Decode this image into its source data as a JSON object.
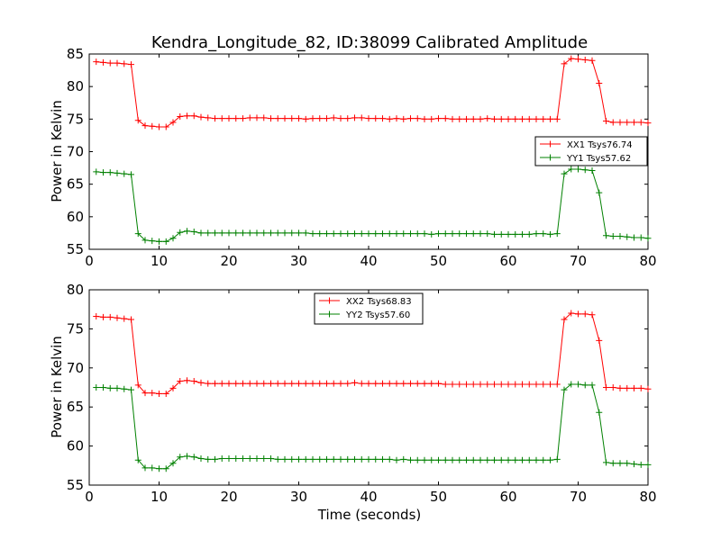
{
  "chart_data": [
    {
      "type": "line",
      "title": "Kendra_Longitude_82, ID:38099 Calibrated Amplitude",
      "xlabel": "",
      "ylabel": "Power in Kelvin",
      "xlim": [
        0,
        80
      ],
      "ylim": [
        55,
        85
      ],
      "xticks": [
        "0",
        "10",
        "20",
        "30",
        "40",
        "50",
        "60",
        "70",
        "80"
      ],
      "yticks": [
        "55",
        "60",
        "65",
        "70",
        "75",
        "80",
        "85"
      ],
      "legend_position": "center-right",
      "x": [
        1,
        2,
        3,
        4,
        5,
        6,
        7,
        8,
        9,
        10,
        11,
        12,
        13,
        14,
        15,
        16,
        17,
        18,
        19,
        20,
        21,
        22,
        23,
        24,
        25,
        26,
        27,
        28,
        29,
        30,
        31,
        32,
        33,
        34,
        35,
        36,
        37,
        38,
        39,
        40,
        41,
        42,
        43,
        44,
        45,
        46,
        47,
        48,
        49,
        50,
        51,
        52,
        53,
        54,
        55,
        56,
        57,
        58,
        59,
        60,
        61,
        62,
        63,
        64,
        65,
        66,
        67,
        68,
        69,
        70,
        71,
        72,
        73,
        74,
        75,
        76,
        77,
        78,
        79,
        80
      ],
      "series": [
        {
          "name": "XX1 Tsys76.74",
          "color": "#ff0000",
          "values": [
            83.8,
            83.7,
            83.6,
            83.6,
            83.5,
            83.4,
            74.8,
            74.0,
            73.9,
            73.8,
            73.8,
            74.5,
            75.4,
            75.5,
            75.5,
            75.3,
            75.2,
            75.1,
            75.1,
            75.1,
            75.1,
            75.1,
            75.2,
            75.2,
            75.2,
            75.1,
            75.1,
            75.1,
            75.1,
            75.1,
            75.0,
            75.1,
            75.1,
            75.1,
            75.2,
            75.1,
            75.1,
            75.2,
            75.2,
            75.1,
            75.1,
            75.1,
            75.0,
            75.1,
            75.0,
            75.1,
            75.1,
            75.0,
            75.0,
            75.1,
            75.1,
            75.0,
            75.0,
            75.0,
            75.0,
            75.0,
            75.1,
            75.0,
            75.0,
            75.0,
            75.0,
            75.0,
            75.0,
            75.0,
            75.0,
            75.0,
            75.0,
            83.5,
            84.3,
            84.2,
            84.1,
            84.0,
            80.5,
            74.7,
            74.5,
            74.5,
            74.5,
            74.5,
            74.5,
            74.4
          ]
        },
        {
          "name": "YY1 Tsys57.62",
          "color": "#008000",
          "values": [
            66.9,
            66.8,
            66.8,
            66.7,
            66.6,
            66.5,
            57.4,
            56.4,
            56.3,
            56.2,
            56.2,
            56.7,
            57.6,
            57.8,
            57.7,
            57.5,
            57.5,
            57.5,
            57.5,
            57.5,
            57.5,
            57.5,
            57.5,
            57.5,
            57.5,
            57.5,
            57.5,
            57.5,
            57.5,
            57.5,
            57.5,
            57.4,
            57.4,
            57.4,
            57.4,
            57.4,
            57.4,
            57.4,
            57.4,
            57.4,
            57.4,
            57.4,
            57.4,
            57.4,
            57.4,
            57.4,
            57.4,
            57.4,
            57.3,
            57.4,
            57.4,
            57.4,
            57.4,
            57.4,
            57.4,
            57.4,
            57.4,
            57.3,
            57.3,
            57.3,
            57.3,
            57.3,
            57.3,
            57.4,
            57.4,
            57.3,
            57.4,
            66.6,
            67.3,
            67.3,
            67.2,
            67.1,
            63.7,
            57.1,
            57.0,
            57.0,
            56.9,
            56.8,
            56.8,
            56.7
          ]
        }
      ]
    },
    {
      "type": "line",
      "title": "",
      "xlabel": "Time (seconds)",
      "ylabel": "Power in Kelvin",
      "xlim": [
        0,
        80
      ],
      "ylim": [
        55,
        80
      ],
      "xticks": [
        "0",
        "10",
        "20",
        "30",
        "40",
        "50",
        "60",
        "70",
        "80"
      ],
      "yticks": [
        "55",
        "60",
        "65",
        "70",
        "75",
        "80"
      ],
      "legend_position": "top-center",
      "x": [
        1,
        2,
        3,
        4,
        5,
        6,
        7,
        8,
        9,
        10,
        11,
        12,
        13,
        14,
        15,
        16,
        17,
        18,
        19,
        20,
        21,
        22,
        23,
        24,
        25,
        26,
        27,
        28,
        29,
        30,
        31,
        32,
        33,
        34,
        35,
        36,
        37,
        38,
        39,
        40,
        41,
        42,
        43,
        44,
        45,
        46,
        47,
        48,
        49,
        50,
        51,
        52,
        53,
        54,
        55,
        56,
        57,
        58,
        59,
        60,
        61,
        62,
        63,
        64,
        65,
        66,
        67,
        68,
        69,
        70,
        71,
        72,
        73,
        74,
        75,
        76,
        77,
        78,
        79,
        80
      ],
      "series": [
        {
          "name": "XX2 Tsys68.83",
          "color": "#ff0000",
          "values": [
            76.6,
            76.5,
            76.5,
            76.4,
            76.3,
            76.2,
            67.8,
            66.8,
            66.8,
            66.7,
            66.7,
            67.4,
            68.3,
            68.4,
            68.3,
            68.1,
            68.0,
            68.0,
            68.0,
            68.0,
            68.0,
            68.0,
            68.0,
            68.0,
            68.0,
            68.0,
            68.0,
            68.0,
            68.0,
            68.0,
            68.0,
            68.0,
            68.0,
            68.0,
            68.0,
            68.0,
            68.0,
            68.1,
            68.0,
            68.0,
            68.0,
            68.0,
            68.0,
            68.0,
            68.0,
            68.0,
            68.0,
            68.0,
            68.0,
            68.0,
            67.9,
            67.9,
            67.9,
            67.9,
            67.9,
            67.9,
            67.9,
            67.9,
            67.9,
            67.9,
            67.9,
            67.9,
            67.9,
            67.9,
            67.9,
            67.9,
            67.9,
            76.2,
            77.0,
            76.9,
            76.9,
            76.8,
            73.5,
            67.5,
            67.5,
            67.4,
            67.4,
            67.4,
            67.4,
            67.3
          ]
        },
        {
          "name": "YY2 Tsys57.60",
          "color": "#008000",
          "values": [
            67.5,
            67.5,
            67.4,
            67.4,
            67.3,
            67.2,
            58.2,
            57.2,
            57.2,
            57.1,
            57.1,
            57.8,
            58.6,
            58.7,
            58.6,
            58.4,
            58.3,
            58.3,
            58.4,
            58.4,
            58.4,
            58.4,
            58.4,
            58.4,
            58.4,
            58.4,
            58.3,
            58.3,
            58.3,
            58.3,
            58.3,
            58.3,
            58.3,
            58.3,
            58.3,
            58.3,
            58.3,
            58.3,
            58.3,
            58.3,
            58.3,
            58.3,
            58.3,
            58.2,
            58.3,
            58.2,
            58.2,
            58.2,
            58.2,
            58.2,
            58.2,
            58.2,
            58.2,
            58.2,
            58.2,
            58.2,
            58.2,
            58.2,
            58.2,
            58.2,
            58.2,
            58.2,
            58.2,
            58.2,
            58.2,
            58.2,
            58.3,
            67.2,
            67.9,
            67.9,
            67.8,
            67.8,
            64.3,
            57.9,
            57.8,
            57.8,
            57.8,
            57.7,
            57.6,
            57.6
          ]
        }
      ]
    }
  ]
}
